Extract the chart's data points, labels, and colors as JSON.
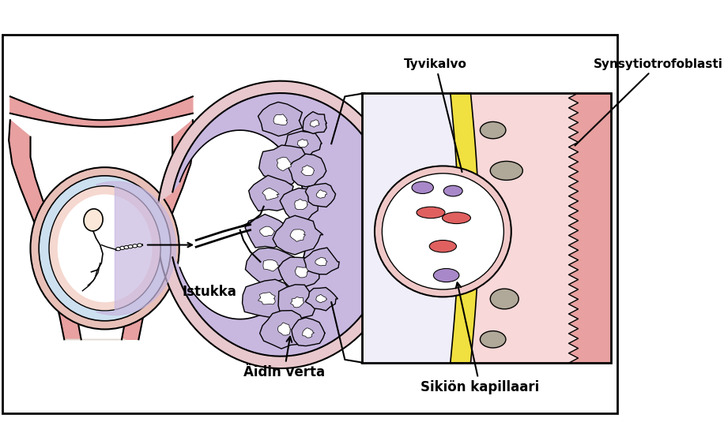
{
  "bg_color": "#ffffff",
  "labels": {
    "tyvikalvo": "Tyvikalvo",
    "synsytiotrofoblasti": "Synsytiotrofoblasti",
    "istukka": "Istukka",
    "aidin_verta": "Äidin verta",
    "sikion_kapillaari": "Sikiön kapillaari"
  },
  "colors": {
    "uterus_pink": "#e8a0a0",
    "uterus_light": "#f0c8c8",
    "sac_outer": "#e8c0b8",
    "sac_blue": "#cce0f0",
    "sac_pink": "#f5d8d0",
    "placenta_pink": "#e8c8cc",
    "placenta_purple": "#c8b8e0",
    "placenta_villi": "#c0b0d8",
    "yellow": "#f0e040",
    "pink_bg": "#f8d8d8",
    "cap_wall": "#f0c8c8",
    "red_rbc": "#e06060",
    "purple_cell": "#a888c8",
    "gray_cell": "#b0a898",
    "black": "#000000",
    "white": "#ffffff",
    "gray_bg": "#e0d8d0"
  }
}
